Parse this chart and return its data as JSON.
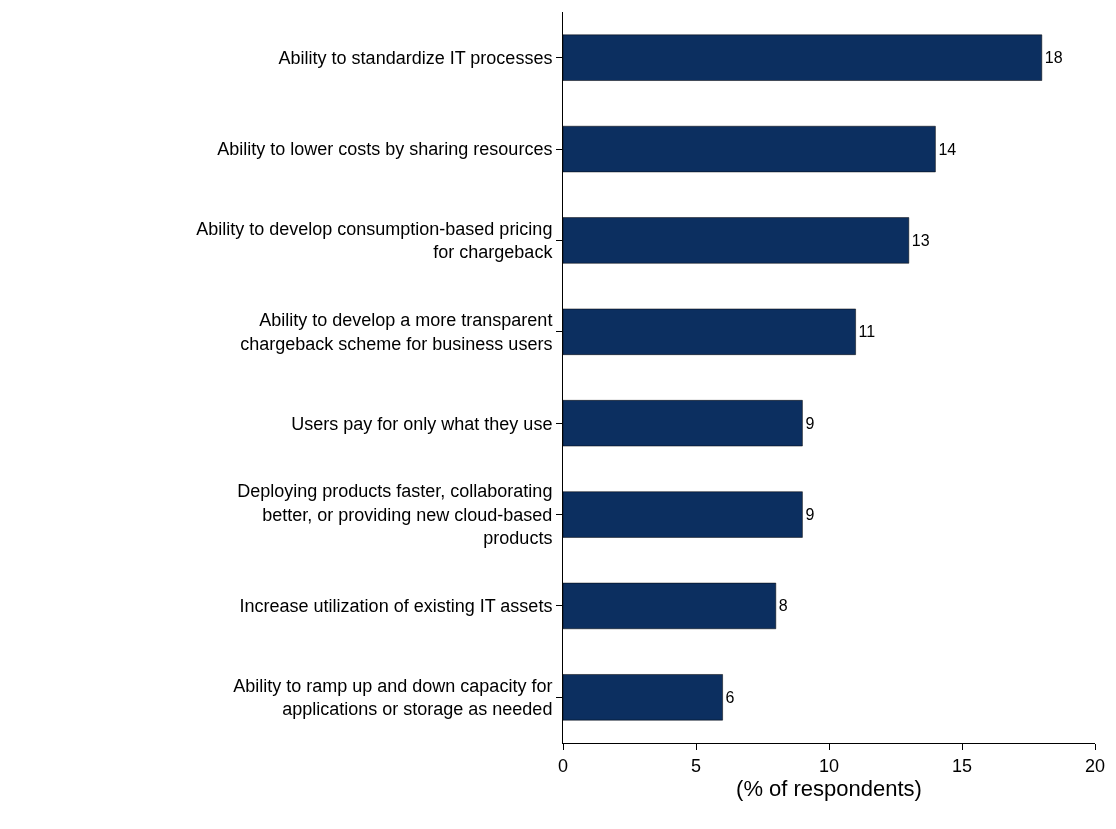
{
  "chart_data": {
    "type": "bar",
    "orientation": "horizontal",
    "categories": [
      "Ability to standardize IT processes",
      "Ability to lower costs by sharing resources",
      "Ability to develop consumption-based pricing for chargeback",
      "Ability to develop a more transparent chargeback scheme for business users",
      "Users pay for only what they use",
      "Deploying products faster, collaborating better, or providing new cloud-based products",
      "Increase utilization of existing IT assets",
      "Ability to ramp up and down capacity for applications or storage as needed"
    ],
    "values": [
      18,
      14,
      13,
      11,
      9,
      9,
      8,
      6
    ],
    "color": "#0c2f60",
    "xlim": [
      0,
      20
    ],
    "xticks": [
      0,
      5,
      10,
      15,
      20
    ],
    "xlabel": "(% of respondents)",
    "data_labels": true
  }
}
